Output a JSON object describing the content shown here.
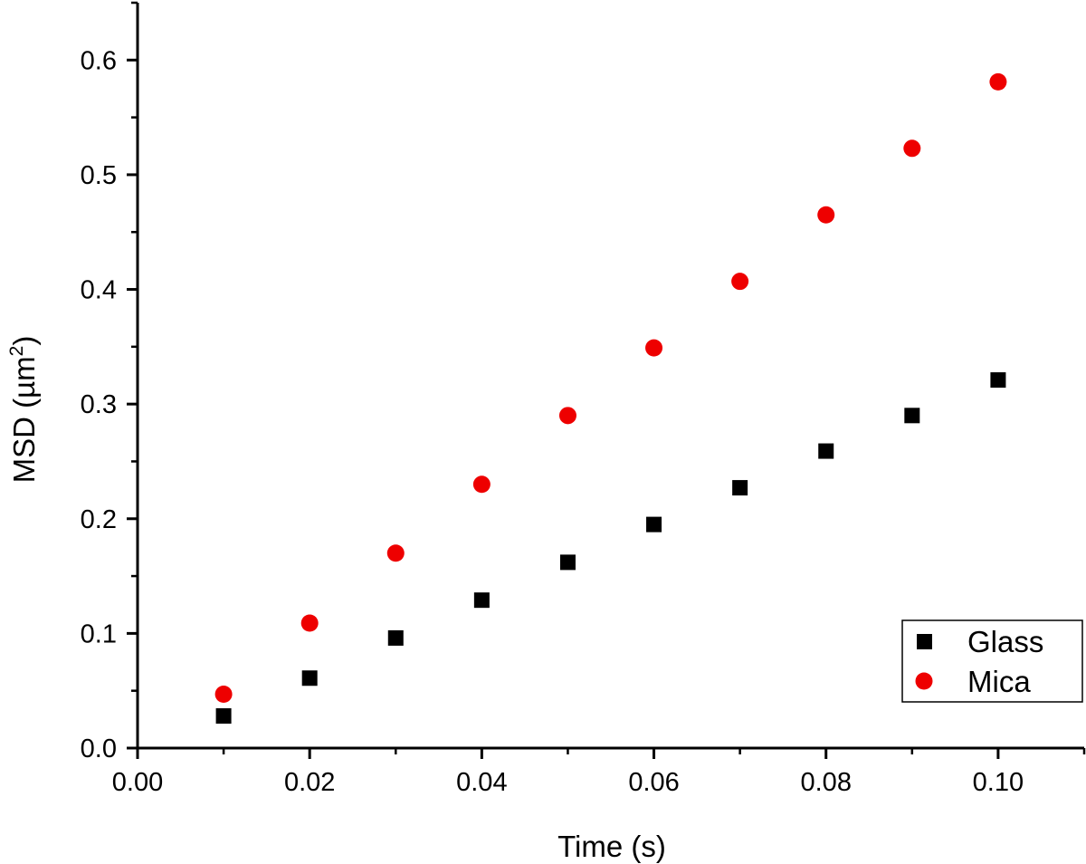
{
  "chart_data": {
    "type": "scatter",
    "title": "",
    "xlabel": "Time (s)",
    "ylabel_main": "MSD (µm",
    "ylabel_sup": "2",
    "ylabel_end": ")",
    "xlim": [
      0,
      0.11
    ],
    "ylim": [
      0,
      0.65
    ],
    "xticks": [
      0.0,
      0.02,
      0.04,
      0.06,
      0.08,
      0.1
    ],
    "xtick_labels": [
      "0.00",
      "0.02",
      "0.04",
      "0.06",
      "0.08",
      "0.10"
    ],
    "yticks": [
      0.0,
      0.1,
      0.2,
      0.3,
      0.4,
      0.5,
      0.6
    ],
    "ytick_labels": [
      "0.0",
      "0.1",
      "0.2",
      "0.3",
      "0.4",
      "0.5",
      "0.6"
    ],
    "grid": false,
    "legend_position": "bottom-right",
    "series": [
      {
        "name": "Glass",
        "marker": "square",
        "color": "#000000",
        "x": [
          0.01,
          0.02,
          0.03,
          0.04,
          0.05,
          0.06,
          0.07,
          0.08,
          0.09,
          0.1
        ],
        "y": [
          0.028,
          0.061,
          0.096,
          0.129,
          0.162,
          0.195,
          0.227,
          0.259,
          0.29,
          0.321
        ]
      },
      {
        "name": "Mica",
        "marker": "circle",
        "color": "#ee0000",
        "x": [
          0.01,
          0.02,
          0.03,
          0.04,
          0.05,
          0.06,
          0.07,
          0.08,
          0.09,
          0.1
        ],
        "y": [
          0.047,
          0.109,
          0.17,
          0.23,
          0.29,
          0.349,
          0.407,
          0.465,
          0.523,
          0.581
        ]
      }
    ]
  }
}
